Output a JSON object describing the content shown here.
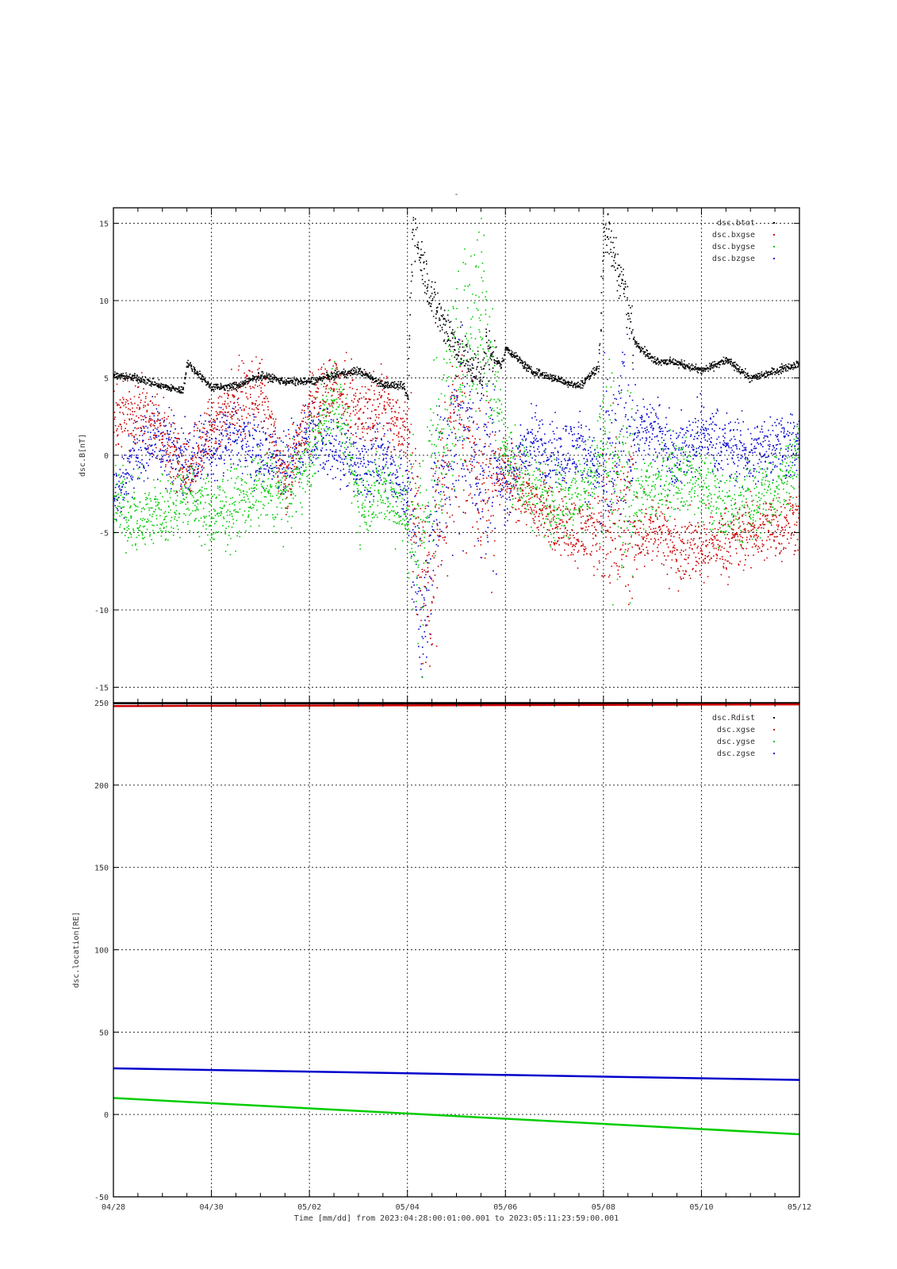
{
  "chart_data": [
    {
      "type": "scatter",
      "title": "-",
      "ylabel": "dsc.B[nT]",
      "xlabel": "",
      "xlim": [
        "04/28",
        "05/12"
      ],
      "ylim": [
        -16,
        16
      ],
      "y_ticks": [
        -15,
        -10,
        -5,
        0,
        5,
        10,
        15
      ],
      "x_ticks": [
        "04/28",
        "04/30",
        "05/02",
        "05/04",
        "05/06",
        "05/08",
        "05/10",
        "05/12"
      ],
      "grid": true,
      "legend_position": "top-right",
      "series": [
        {
          "name": "dsc.btot",
          "color": "#000000",
          "x": [
            0,
            0.5,
            1,
            1.4,
            1.5,
            2,
            2.5,
            3,
            3.5,
            4,
            4.5,
            5,
            5.5,
            5.9,
            6.0,
            6.1,
            6.5,
            7,
            7.5,
            7.6,
            7.9,
            8,
            8.5,
            9,
            9.5,
            9.9,
            10.0,
            10.4,
            10.6,
            11,
            11.5,
            12,
            12.5,
            13,
            13.5,
            14
          ],
          "values": [
            5.2,
            5.0,
            4.5,
            4.2,
            6.0,
            4.4,
            4.5,
            5.2,
            4.8,
            4.8,
            5.2,
            5.5,
            4.6,
            4.5,
            3.7,
            15.0,
            10.0,
            7.0,
            5.0,
            7.0,
            5.8,
            7.0,
            5.5,
            5.0,
            4.5,
            5.8,
            15.0,
            11.0,
            7.5,
            6.2,
            6.0,
            5.5,
            6.2,
            5.0,
            5.5,
            6.0
          ]
        },
        {
          "name": "dsc.bxgse",
          "color": "#cc0000",
          "x": [
            0,
            0.5,
            1,
            1.5,
            2,
            2.5,
            3,
            3.5,
            4,
            4.5,
            5,
            5.5,
            6,
            6.3,
            6.5,
            7,
            7.5,
            8,
            8.5,
            9,
            9.5,
            10,
            10.5,
            11,
            11.5,
            12,
            12.5,
            13,
            13.5,
            14
          ],
          "values": [
            2.5,
            3.0,
            1.5,
            -1.0,
            2.0,
            3.5,
            4.0,
            -2.0,
            3.0,
            4.8,
            2.8,
            3.5,
            1.0,
            -8.0,
            -7.0,
            3.0,
            -2.0,
            -1.0,
            -3.0,
            -4.0,
            -5.0,
            -4.5,
            -5.0,
            -4.8,
            -6.0,
            -5.8,
            -5.5,
            -5.0,
            -4.5,
            -4.0
          ]
        },
        {
          "name": "dsc.bygse",
          "color": "#00cc00",
          "x": [
            0,
            0.5,
            1,
            1.5,
            2,
            2.5,
            3,
            3.5,
            4,
            4.5,
            5,
            5.5,
            6,
            6.3,
            6.5,
            7,
            7.5,
            8,
            8.5,
            9,
            9.5,
            10,
            10.5,
            11,
            11.5,
            12,
            12.5,
            13,
            13.5,
            14
          ],
          "values": [
            -3.0,
            -4.0,
            -3.5,
            -2.5,
            -4.0,
            -3.0,
            -2.0,
            -2.5,
            0.0,
            4.5,
            -3.0,
            -2.0,
            -4.0,
            -6.0,
            0.0,
            5.0,
            10.0,
            0.0,
            -2.0,
            -3.0,
            -2.5,
            0.0,
            -3.0,
            -2.0,
            -1.0,
            -2.0,
            -3.5,
            -3.0,
            -2.0,
            0.0
          ]
        },
        {
          "name": "dsc.bzgse",
          "color": "#0000cc",
          "x": [
            0,
            0.5,
            1,
            1.5,
            2,
            2.5,
            3,
            3.5,
            4,
            4.5,
            5,
            5.5,
            6,
            6.3,
            6.5,
            7,
            7.5,
            8,
            8.5,
            9,
            9.5,
            10,
            10.5,
            11,
            11.5,
            12,
            12.5,
            13,
            13.5,
            14
          ],
          "values": [
            -3.0,
            0.5,
            1.0,
            -0.5,
            0.5,
            1.5,
            0.0,
            -1.0,
            1.5,
            0.5,
            -0.5,
            0.0,
            -2.5,
            -12.0,
            -4.0,
            2.0,
            0.0,
            -2.0,
            1.0,
            0.0,
            0.5,
            -1.5,
            2.0,
            1.5,
            0.0,
            1.5,
            0.5,
            0.0,
            1.0,
            0.5
          ]
        }
      ]
    },
    {
      "type": "line",
      "ylabel": "dsc.location[RE]",
      "xlabel": "Time [mm/dd]  from 2023:04:28:00:01:00.001  to  2023:05:11:23:59:00.001",
      "xlim": [
        "04/28",
        "05/12"
      ],
      "ylim": [
        -50,
        250
      ],
      "y_ticks": [
        -50,
        0,
        50,
        100,
        150,
        200,
        250
      ],
      "x_ticks": [
        "04/28",
        "04/30",
        "05/02",
        "05/04",
        "05/06",
        "05/08",
        "05/10",
        "05/12"
      ],
      "grid": true,
      "legend_position": "top-right",
      "series": [
        {
          "name": "dsc.Rdist",
          "color": "#000000",
          "x": [
            0,
            14
          ],
          "values": [
            250,
            250
          ]
        },
        {
          "name": "dsc.xgse",
          "color": "#cc0000",
          "x": [
            0,
            14
          ],
          "values": [
            248,
            249
          ]
        },
        {
          "name": "dsc.ygse",
          "color": "#00cc00",
          "x": [
            0,
            14
          ],
          "values": [
            10,
            -12
          ]
        },
        {
          "name": "dsc.zgse",
          "color": "#0000cc",
          "x": [
            0,
            14
          ],
          "values": [
            28,
            21
          ]
        }
      ]
    }
  ]
}
